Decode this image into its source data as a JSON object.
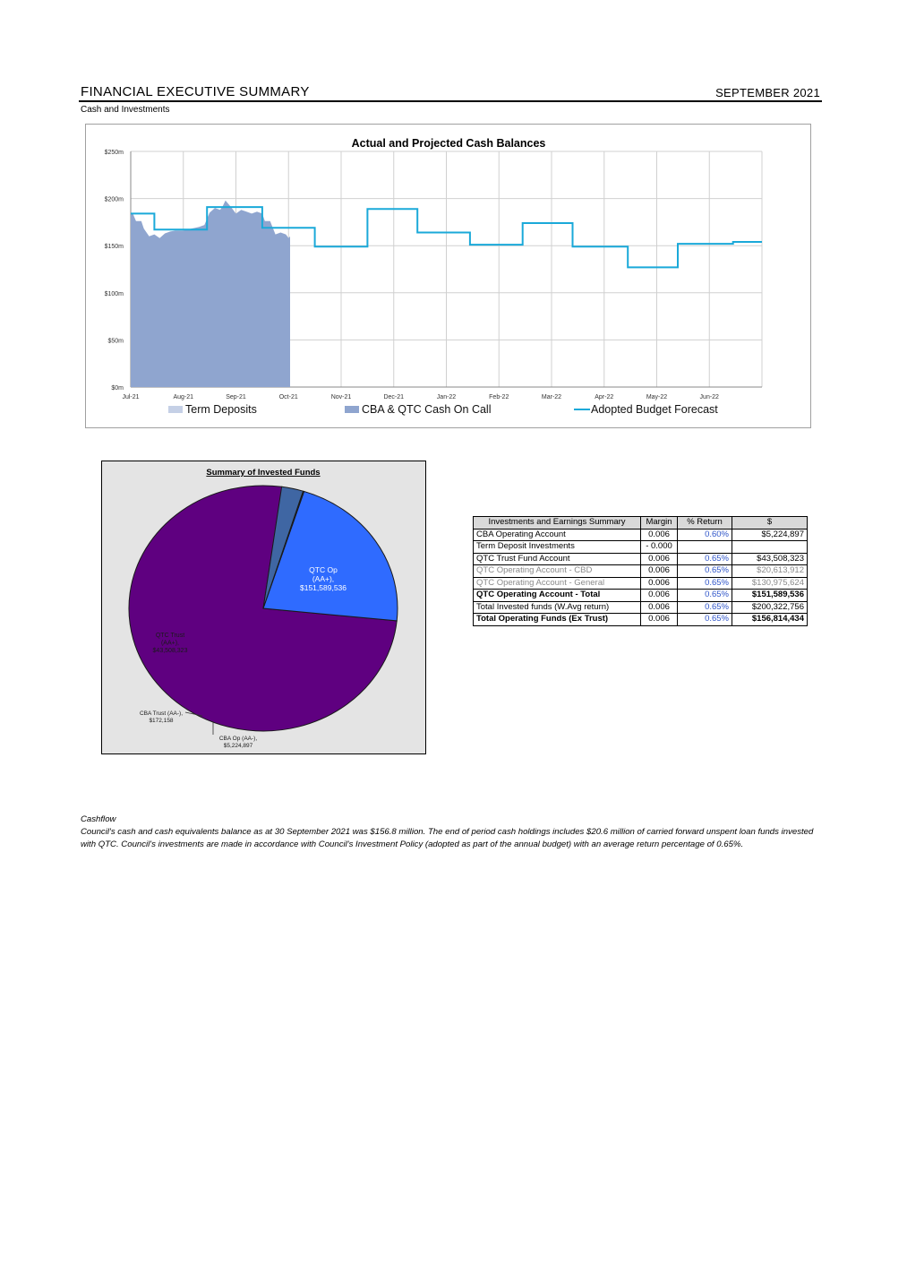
{
  "header": {
    "title": "FINANCIAL EXECUTIVE SUMMARY",
    "date": "SEPTEMBER 2021",
    "subtitle": "Cash and Investments"
  },
  "cash_chart": {
    "type": "area",
    "title": "Actual and Projected Cash Balances",
    "ylim": [
      0,
      250
    ],
    "yticks": [
      "$0m",
      "$50m",
      "$100m",
      "$150m",
      "$200m",
      "$250m"
    ],
    "months": [
      "Jul-21",
      "Aug-21",
      "Sep-21",
      "Oct-21",
      "Nov-21",
      "Dec-21",
      "Jan-22",
      "Feb-22",
      "Mar-22",
      "Apr-22",
      "May-22",
      "Jun-22"
    ],
    "legend": [
      "Term Deposits",
      "CBA & QTC Cash On Call",
      "Adopted Budget Forecast"
    ],
    "grid": true,
    "colors": {
      "term_deposits": "#c5d0e6",
      "cash_on_call": "#8fa5cf",
      "forecast": "#1aa9d9"
    },
    "actual_cash_on_call": [
      [
        0.0,
        184
      ],
      [
        0.04,
        184
      ],
      [
        0.1,
        176
      ],
      [
        0.2,
        176
      ],
      [
        0.25,
        168
      ],
      [
        0.35,
        160
      ],
      [
        0.45,
        162
      ],
      [
        0.55,
        158
      ],
      [
        0.65,
        163
      ],
      [
        0.75,
        165
      ],
      [
        0.85,
        166
      ],
      [
        1.0,
        166
      ],
      [
        1.15,
        168
      ],
      [
        1.3,
        170
      ],
      [
        1.4,
        172
      ],
      [
        1.5,
        185
      ],
      [
        1.6,
        190
      ],
      [
        1.7,
        188
      ],
      [
        1.75,
        192
      ],
      [
        1.8,
        198
      ],
      [
        1.86,
        194
      ],
      [
        1.92,
        190
      ],
      [
        2.0,
        184
      ],
      [
        2.1,
        188
      ],
      [
        2.2,
        186
      ],
      [
        2.3,
        184
      ],
      [
        2.4,
        186
      ],
      [
        2.5,
        184
      ],
      [
        2.55,
        176
      ],
      [
        2.65,
        176
      ],
      [
        2.75,
        162
      ],
      [
        2.85,
        164
      ],
      [
        2.95,
        162
      ],
      [
        3.0,
        158
      ],
      [
        3.03,
        160
      ]
    ],
    "forecast": [
      [
        0,
        184
      ],
      [
        0.45,
        184
      ],
      [
        0.45,
        167
      ],
      [
        1.45,
        167
      ],
      [
        1.45,
        191
      ],
      [
        2.5,
        191
      ],
      [
        2.5,
        169
      ],
      [
        3.5,
        169
      ],
      [
        3.5,
        149
      ],
      [
        4.5,
        149
      ],
      [
        4.5,
        189
      ],
      [
        5.45,
        189
      ],
      [
        5.45,
        164
      ],
      [
        6.45,
        164
      ],
      [
        6.45,
        151
      ],
      [
        7.45,
        151
      ],
      [
        7.45,
        174
      ],
      [
        8.4,
        174
      ],
      [
        8.4,
        149
      ],
      [
        9.45,
        149
      ],
      [
        9.45,
        127
      ],
      [
        10.4,
        127
      ],
      [
        10.4,
        152
      ],
      [
        11.45,
        152
      ],
      [
        11.45,
        154
      ],
      [
        12,
        154
      ]
    ]
  },
  "pie_chart": {
    "type": "pie",
    "title": "Summary of Invested Funds",
    "slices": [
      {
        "label": "QTC Op (AA+), $151,589,536",
        "value": 151589536,
        "color": "#5f0080"
      },
      {
        "label": "QTC Trust (AA+), $43,508,323",
        "value": 43508323,
        "color": "#2f6bff"
      },
      {
        "label": "CBA Trust (AA-), $172,158",
        "value": 172158,
        "color": "#1f3b7a"
      },
      {
        "label": "CBA Op (AA-), $5,224,897",
        "value": 5224897,
        "color": "#3f66a3"
      }
    ],
    "labels": {
      "qtc_op": [
        "QTC Op",
        "(AA+),",
        "$151,589,536"
      ],
      "qtc_trust": [
        "QTC Trust",
        "(AA+),",
        "$43,508,323"
      ],
      "cba_trust": [
        "CBA Trust (AA-),",
        "$172,158"
      ],
      "cba_op": [
        "CBA Op (AA-),",
        "$5,224,897"
      ]
    }
  },
  "table": {
    "headers": [
      "Investments and Earnings Summary",
      "Margin",
      "% Return",
      "$"
    ],
    "rows": [
      {
        "name": "CBA Operating Account",
        "margin": "0.006",
        "ret": "0.60%",
        "val": "$5,224,897",
        "style": "dashed"
      },
      {
        "name": "Term Deposit Investments",
        "margin": "- 0.000",
        "ret": "",
        "val": "",
        "style": "dashed"
      },
      {
        "name": "QTC Trust Fund Account",
        "margin": "0.006",
        "ret": "0.65%",
        "val": "$43,508,323",
        "style": "dashed"
      },
      {
        "name": "QTC Operating Account - CBD",
        "margin": "0.006",
        "ret": "0.65%",
        "val": "$20,613,912",
        "style": "dashed grey"
      },
      {
        "name": "QTC Operating Account - General",
        "margin": "0.006",
        "ret": "0.65%",
        "val": "$130,975,624",
        "style": "dashed grey"
      },
      {
        "name": "QTC Operating Account - Total",
        "margin": "0.006",
        "ret": "0.65%",
        "val": "$151,589,536",
        "style": "bold"
      },
      {
        "name": "Total Invested funds (W.Avg return)",
        "margin": "0.006",
        "ret": "0.65%",
        "val": "$200,322,756",
        "style": ""
      },
      {
        "name": "Total Operating Funds (Ex Trust)",
        "margin": "0.006",
        "ret": "0.65%",
        "val": "$156,814,434",
        "style": "bold"
      }
    ]
  },
  "cashflow": {
    "title": "Cashflow",
    "body": "Council's cash and cash equivalents balance as at 30 September 2021 was $156.8 million. The end of period cash holdings includes $20.6 million of carried forward unspent loan funds invested with QTC. Council's investments are made in accordance with Council's Investment Policy (adopted as part of the annual budget) with an average return percentage of 0.65%."
  }
}
